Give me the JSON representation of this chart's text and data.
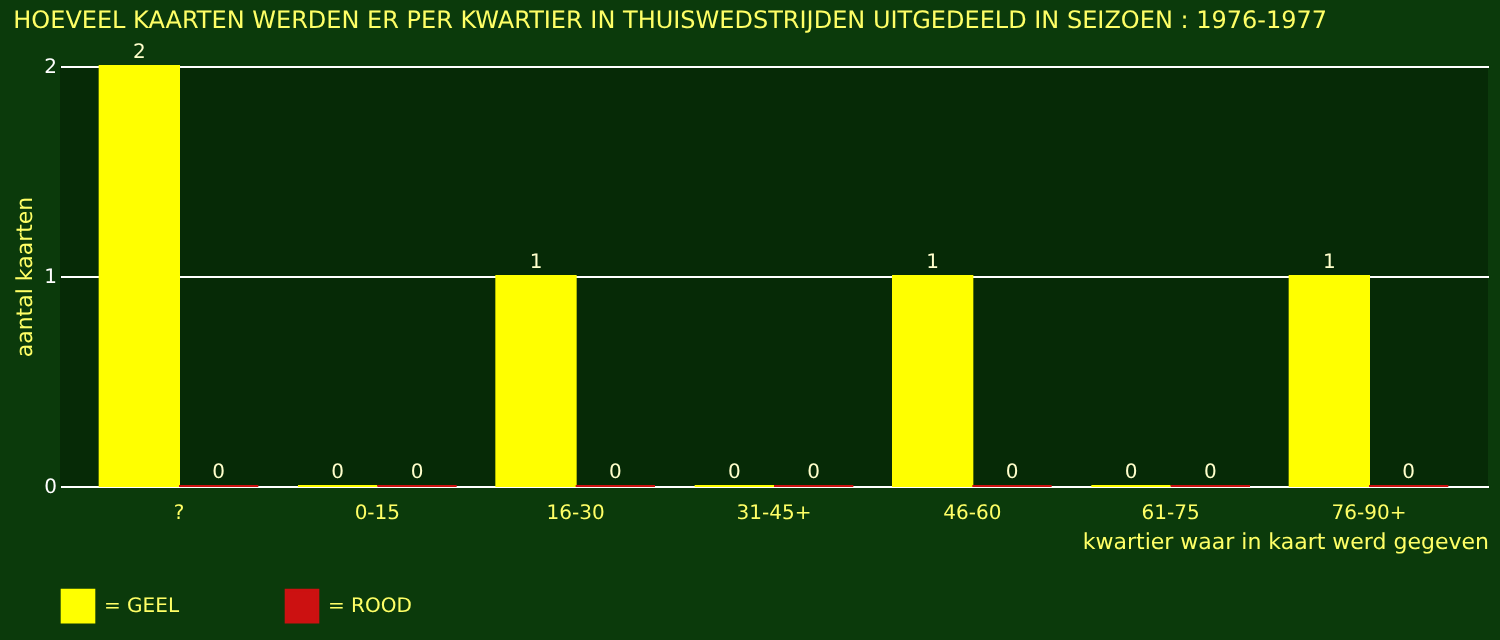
{
  "chart_data": {
    "type": "bar",
    "title": "HOEVEEL KAARTEN WERDEN ER PER KWARTIER IN THUISWEDSTRIJDEN UITGEDEELD IN SEIZOEN : 1976-1977",
    "xlabel": "kwartier waar in kaart werd gegeven",
    "ylabel": "aantal kaarten",
    "categories": [
      "?",
      "0-15",
      "16-30",
      "31-45+",
      "46-60",
      "61-75",
      "76-90+"
    ],
    "series": [
      {
        "name": "= GEEL",
        "color": "#ffff00",
        "values": [
          2,
          0,
          1,
          0,
          1,
          0,
          1
        ]
      },
      {
        "name": "= ROOD",
        "color": "#cc1111",
        "values": [
          0,
          0,
          0,
          0,
          0,
          0,
          0
        ]
      }
    ],
    "ylim": [
      0,
      2
    ],
    "yticks": [
      0,
      1,
      2
    ],
    "grid": "y",
    "legend": "bottom",
    "data_labels": true
  }
}
